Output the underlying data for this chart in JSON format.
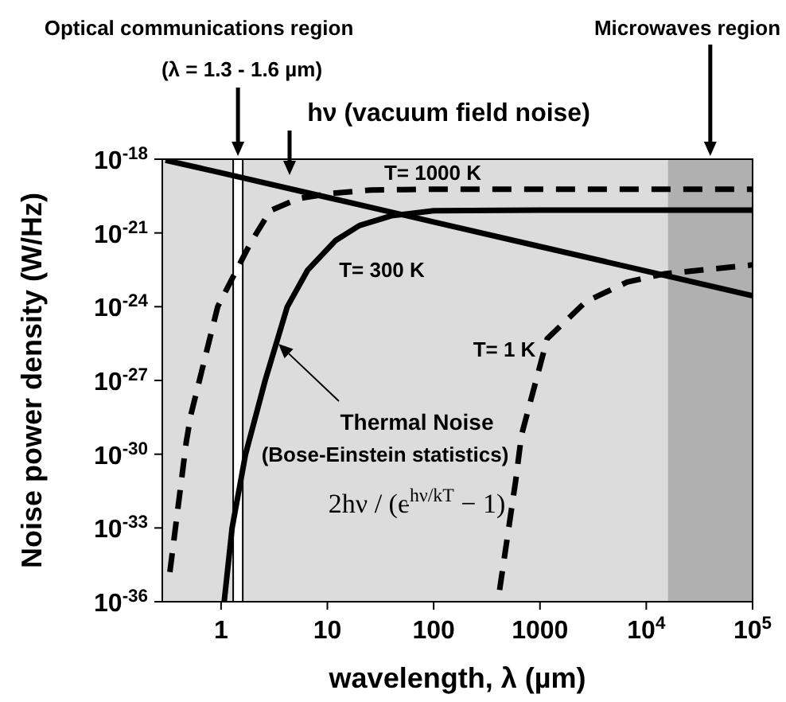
{
  "chart_data": {
    "type": "line",
    "xlabel": "wavelength, λ (µm)",
    "ylabel": "Noise power density (W/Hz)",
    "log": "xy",
    "xlim": [
      0.28,
      100000
    ],
    "ylim": [
      1e-36,
      1e-18
    ],
    "xticks": [
      1,
      10,
      100,
      1000,
      {
        "value": 10000,
        "label": "10$^{4}$"
      },
      {
        "value": 100000,
        "label": "10$^{5}$"
      }
    ],
    "yticks": [
      {
        "value": 1e-36,
        "label": "10$^{-36}$"
      },
      {
        "value": 1e-33,
        "label": "10$^{-33}$"
      },
      {
        "value": 1e-30,
        "label": "10$^{-30}$"
      },
      {
        "value": 1e-27,
        "label": "10$^{-27}$"
      },
      {
        "value": 1e-24,
        "label": "10$^{-24}$"
      },
      {
        "value": 1e-21,
        "label": "10$^{-21}$"
      },
      {
        "value": 1e-18,
        "label": "10$^{-18}$"
      }
    ],
    "series": [
      {
        "name": "hν (vacuum field noise)",
        "color": "#000000",
        "line_style": "solid",
        "x": [
          0.3,
          1,
          10,
          100,
          1000,
          10000,
          100000
        ],
        "values": [
          9e-19,
          2.8e-19,
          2.8e-20,
          2.8e-21,
          2.8e-22,
          2.8e-23,
          2.8e-24
        ]
      },
      {
        "name": "T= 1000 K",
        "color": "#000000",
        "line_style": "dashed",
        "x": [
          0.33,
          0.47,
          0.52,
          0.93,
          1.9,
          2.9,
          5.3,
          10.5,
          26,
          100,
          100000
        ],
        "values": [
          1.6e-35,
          3e-30,
          4e-29,
          1e-24,
          4e-22,
          8e-21,
          2.5e-20,
          4e-20,
          5.6e-20,
          6e-20,
          6e-20
        ]
      },
      {
        "name": "T= 300 K",
        "color": "#000000",
        "line_style": "solid",
        "x": [
          1.07,
          1.27,
          1.7,
          2.6,
          4.2,
          6.5,
          12,
          20,
          40,
          100,
          1000,
          16000,
          100000
        ],
        "values": [
          1e-36,
          1e-33,
          1e-30,
          1e-27,
          1e-24,
          3e-23,
          5e-22,
          2e-21,
          5e-21,
          8e-21,
          8.5e-21,
          8.5e-21,
          8.5e-21
        ]
      },
      {
        "name": "T= 1 K",
        "color": "#000000",
        "line_style": "dashed",
        "x": [
          417,
          590,
          670,
          1170,
          2700,
          6600,
          15000,
          100000
        ],
        "values": [
          3e-36,
          8e-32,
          6e-30,
          5e-26,
          1.6e-24,
          1e-23,
          2.2e-23,
          5e-23
        ]
      }
    ],
    "bands": [
      {
        "axis": "x",
        "from": 1.3,
        "to": 1.6,
        "color": "#ffffff"
      },
      {
        "axis": "x",
        "from": 16000,
        "to": 100000,
        "color": "#8c8c8c"
      }
    ],
    "annotations": [
      "Optical communications region",
      "Microwaves region",
      "(λ = 1.3 - 1.6 µm)",
      "Thermal Noise",
      "(Bose-Einstein statistics)",
      "2hν / (e$^{hν/kT}$ − 1)"
    ]
  }
}
